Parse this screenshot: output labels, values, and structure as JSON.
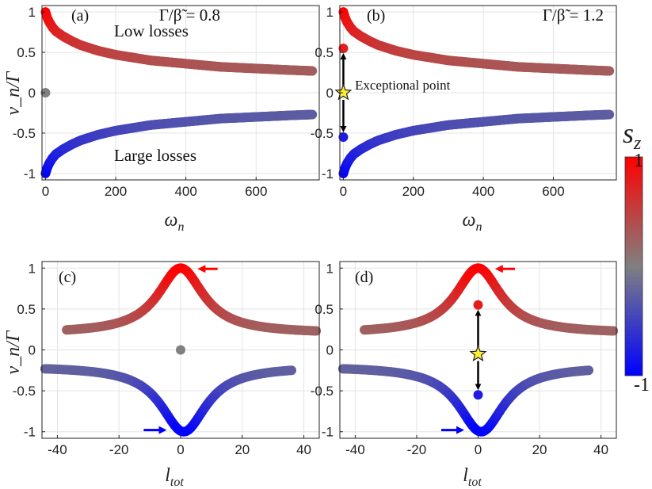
{
  "colorbar": {
    "label": "s_z",
    "label_main": "s",
    "label_sub": "z",
    "max_label": "1",
    "min_label": "-1",
    "color_top": "#ff0000",
    "color_mid": "#808080",
    "color_bottom": "#0000ff"
  },
  "chart_data": [
    {
      "panel": "(a)",
      "type": "scatter",
      "param_text": "Γ/β̃ = 0.8",
      "xlabel": "ω_n",
      "xlabel_main": "ω",
      "xlabel_sub": "n",
      "ylabel": "v_n/Γ",
      "xlim": [
        -10,
        780
      ],
      "ylim": [
        -1.08,
        1.08
      ],
      "xticks": [
        0,
        200,
        400,
        600
      ],
      "xtick_labels": [
        "0",
        "200",
        "400",
        "600"
      ],
      "yticks": [
        1,
        0.5,
        0,
        -0.5,
        -1
      ],
      "ytick_labels": [
        "1",
        "0.5",
        "0",
        "-0.5",
        "-1"
      ],
      "annotations": [
        "Low losses",
        "Large losses"
      ],
      "series": [
        {
          "name": "upper branch (low losses)",
          "sz": "+1 → ~0.3",
          "x": [
            0,
            5,
            10,
            20,
            30,
            50,
            75,
            100,
            150,
            200,
            300,
            400,
            500,
            600,
            700,
            760
          ],
          "y": [
            1.0,
            0.93,
            0.88,
            0.81,
            0.76,
            0.7,
            0.64,
            0.59,
            0.52,
            0.47,
            0.4,
            0.36,
            0.32,
            0.3,
            0.28,
            0.27
          ]
        },
        {
          "name": "lower branch (large losses)",
          "sz": "-1 → ~-0.3",
          "x": [
            0,
            5,
            10,
            20,
            30,
            50,
            75,
            100,
            150,
            200,
            300,
            400,
            500,
            600,
            700,
            760
          ],
          "y": [
            -1.0,
            -0.93,
            -0.88,
            -0.81,
            -0.76,
            -0.7,
            -0.64,
            -0.59,
            -0.52,
            -0.47,
            -0.4,
            -0.36,
            -0.32,
            -0.3,
            -0.28,
            -0.27
          ]
        },
        {
          "name": "single mode",
          "sz": "0",
          "x": [
            0
          ],
          "y": [
            0
          ]
        }
      ]
    },
    {
      "panel": "(b)",
      "type": "scatter",
      "param_text": "Γ/β̃ = 1.2",
      "xlabel": "ω_n",
      "xlabel_main": "ω",
      "xlabel_sub": "n",
      "ylabel": "",
      "xlim": [
        -10,
        780
      ],
      "ylim": [
        -1.08,
        1.08
      ],
      "xticks": [
        0,
        200,
        400,
        600
      ],
      "xtick_labels": [
        "0",
        "200",
        "400",
        "600"
      ],
      "yticks": [
        1,
        0.5,
        0,
        -0.5,
        -1
      ],
      "ytick_labels": [
        "1",
        "0.5",
        "0",
        "-0.5",
        "-1"
      ],
      "annotations": [
        "Exceptional point"
      ],
      "exceptional_point": {
        "x": 0,
        "y": 0,
        "upper_y": 0.55,
        "lower_y": -0.55
      },
      "series": [
        {
          "name": "upper branch",
          "sz": "+1 → ~0.3",
          "x": [
            0,
            5,
            10,
            20,
            30,
            50,
            75,
            100,
            150,
            200,
            300,
            400,
            500,
            600,
            700,
            760
          ],
          "y": [
            1.0,
            0.93,
            0.88,
            0.81,
            0.76,
            0.7,
            0.64,
            0.59,
            0.52,
            0.47,
            0.4,
            0.36,
            0.32,
            0.3,
            0.28,
            0.27
          ]
        },
        {
          "name": "lower branch",
          "sz": "-1 → ~-0.3",
          "x": [
            0,
            5,
            10,
            20,
            30,
            50,
            75,
            100,
            150,
            200,
            300,
            400,
            500,
            600,
            700,
            760
          ],
          "y": [
            -1.0,
            -0.93,
            -0.88,
            -0.81,
            -0.76,
            -0.7,
            -0.64,
            -0.59,
            -0.52,
            -0.47,
            -0.4,
            -0.36,
            -0.32,
            -0.3,
            -0.28,
            -0.27
          ]
        },
        {
          "name": "split pair",
          "x": [
            0,
            0
          ],
          "y": [
            0.55,
            -0.55
          ]
        }
      ]
    },
    {
      "panel": "(c)",
      "type": "scatter",
      "xlabel": "l_tot",
      "xlabel_main": "l",
      "xlabel_sub": "tot",
      "ylabel": "v_n/Γ",
      "xlim": [
        -45,
        45
      ],
      "ylim": [
        -1.08,
        1.08
      ],
      "xticks": [
        -40,
        -20,
        0,
        20,
        40
      ],
      "xtick_labels": [
        "-40",
        "-20",
        "0",
        "20",
        "40"
      ],
      "yticks": [
        1,
        0.5,
        0,
        -0.5,
        -1
      ],
      "ytick_labels": [
        "1",
        "0.5",
        "0",
        "-0.5",
        "-1"
      ],
      "series": [
        {
          "name": "upper branch",
          "sz": "peak +1 at l_tot≈0",
          "x_range": [
            -37,
            44
          ],
          "center": 0,
          "width": 9,
          "floor": 0.2,
          "peak": 1.0
        },
        {
          "name": "lower branch",
          "sz": "trough -1 at l_tot≈1",
          "x_range": [
            -44,
            36
          ],
          "center": 1,
          "width": 9,
          "floor": -0.2,
          "peak": -1.0
        },
        {
          "name": "single mode",
          "x": [
            0
          ],
          "y": [
            0
          ]
        }
      ]
    },
    {
      "panel": "(d)",
      "type": "scatter",
      "xlabel": "l_tot",
      "xlabel_main": "l",
      "xlabel_sub": "tot",
      "ylabel": "",
      "xlim": [
        -45,
        45
      ],
      "ylim": [
        -1.08,
        1.08
      ],
      "xticks": [
        -40,
        -20,
        0,
        20,
        40
      ],
      "xtick_labels": [
        "-40",
        "-20",
        "0",
        "20",
        "40"
      ],
      "yticks": [
        1,
        0.5,
        0,
        -0.5,
        -1
      ],
      "ytick_labels": [
        "1",
        "0.5",
        "0",
        "-0.5",
        "-1"
      ],
      "exceptional_point": {
        "x": 0,
        "y": -0.05,
        "upper_y": 0.55,
        "lower_y": -0.55
      },
      "series": [
        {
          "name": "upper branch",
          "sz": "peak +1 at l_tot≈0",
          "x_range": [
            -37,
            44
          ],
          "center": 0,
          "width": 9,
          "floor": 0.2,
          "peak": 1.0
        },
        {
          "name": "lower branch",
          "sz": "trough -1 at l_tot≈1",
          "x_range": [
            -44,
            36
          ],
          "center": 1,
          "width": 9,
          "floor": -0.2,
          "peak": -1.0
        },
        {
          "name": "split pair",
          "x": [
            0,
            0
          ],
          "y": [
            0.55,
            -0.55
          ]
        }
      ]
    }
  ]
}
